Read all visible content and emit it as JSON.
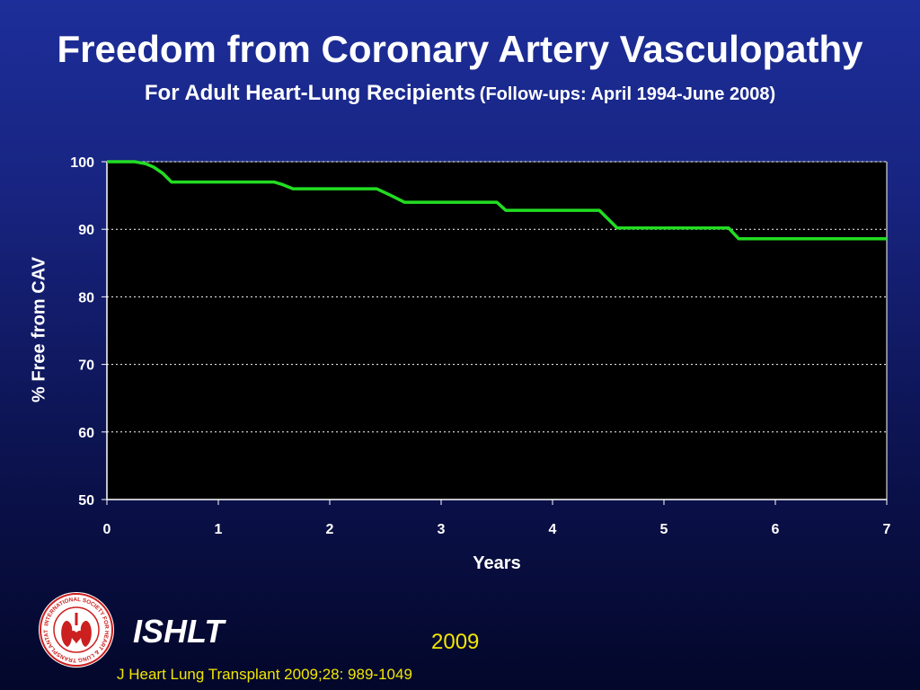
{
  "slide": {
    "title": "Freedom from Coronary Artery Vasculopathy",
    "subtitle_main": "For Adult Heart-Lung Recipients",
    "subtitle_paren": "(Follow-ups: April 1994-June 2008)",
    "org": "ISHLT",
    "year": "2009",
    "citation": "J Heart Lung Transplant 2009;28: 989-1049",
    "logo_text": "INTERNATIONAL SOCIETY FOR HEART & LUNG TRANSPLANTATION"
  },
  "colors": {
    "background": "#1d2e9a",
    "plot_area": "#000000",
    "series_line": "#22dd22",
    "text": "#ffffff",
    "accent_text": "#f2e600",
    "logo_red": "#cc1f1f"
  },
  "chart_data": {
    "type": "line",
    "xlabel": "Years",
    "ylabel": "% Free from CAV",
    "xlim": [
      0,
      7
    ],
    "ylim": [
      50,
      100
    ],
    "xticks": [
      0,
      1,
      2,
      3,
      4,
      5,
      6,
      7
    ],
    "yticks": [
      50,
      60,
      70,
      80,
      90,
      100
    ],
    "grid": "horizontal dotted",
    "legend": "none",
    "series": [
      {
        "x": [
          0,
          0.25,
          0.35,
          0.42,
          0.5,
          0.58,
          1.5,
          1.58,
          1.67,
          2.42,
          2.55,
          2.67,
          3.5,
          3.58,
          4.42,
          4.58,
          5.58,
          5.67,
          7.0
        ],
        "y": [
          100,
          100,
          99.7,
          99.2,
          98.3,
          97.0,
          97.0,
          96.6,
          96.0,
          96.0,
          95.0,
          94.0,
          94.0,
          92.8,
          92.8,
          90.2,
          90.2,
          88.6,
          88.6
        ]
      }
    ]
  }
}
